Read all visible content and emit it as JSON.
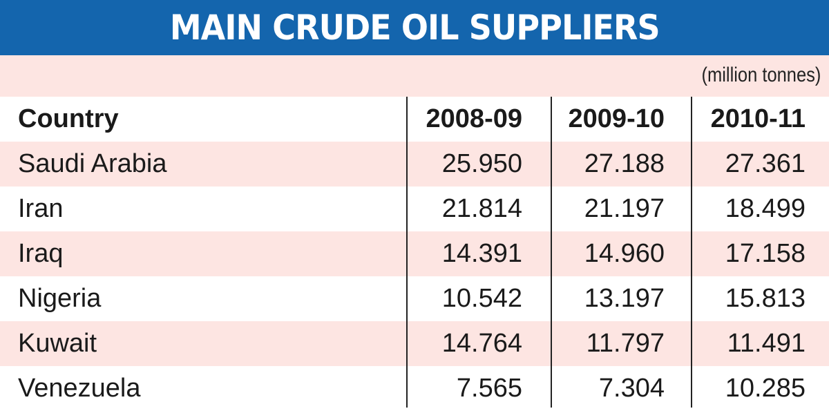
{
  "title": "MAIN CRUDE OIL SUPPLIERS",
  "units": "(million tonnes)",
  "colors": {
    "header_blue": "#1465ad",
    "row_pink": "#fde5e2",
    "row_white": "#ffffff"
  },
  "chart_data": {
    "type": "table",
    "title": "MAIN CRUDE OIL SUPPLIERS",
    "units": "(million tonnes)",
    "columns": [
      "Country",
      "2008-09",
      "2009-10",
      "2010-11"
    ],
    "rows": [
      [
        "Saudi Arabia",
        "25.950",
        "27.188",
        "27.361"
      ],
      [
        "Iran",
        "21.814",
        "21.197",
        "18.499"
      ],
      [
        "Iraq",
        "14.391",
        "14.960",
        "17.158"
      ],
      [
        "Nigeria",
        "10.542",
        "13.197",
        "15.813"
      ],
      [
        "Kuwait",
        "14.764",
        "11.797",
        "11.491"
      ],
      [
        "Venezuela",
        "7.565",
        "7.304",
        "10.285"
      ]
    ]
  }
}
